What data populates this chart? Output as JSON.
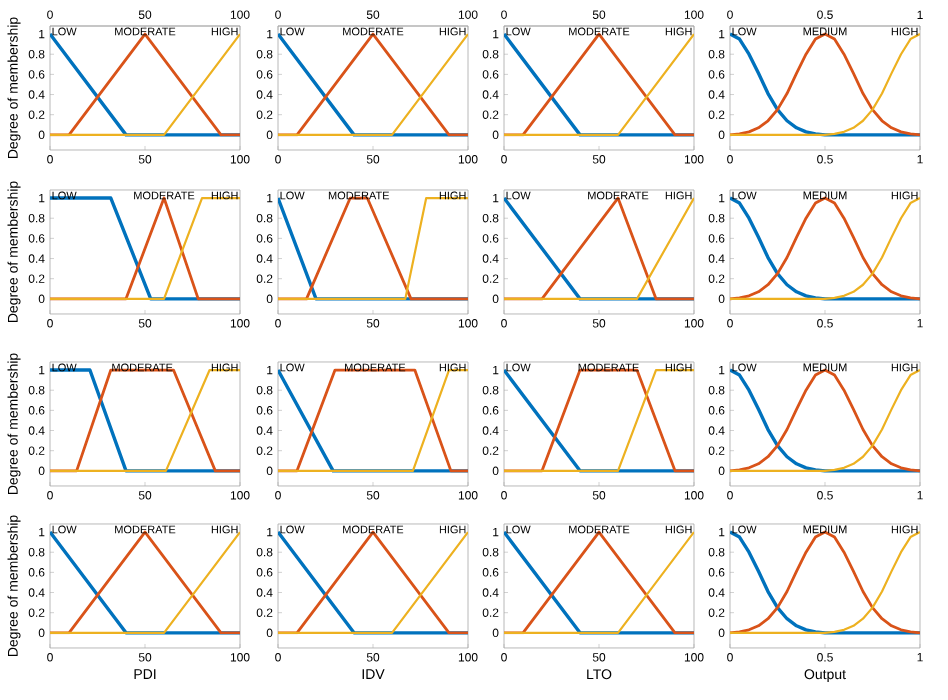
{
  "chart_data": [
    {
      "type": "line",
      "ylabel": "Degree of membership",
      "xlim": [
        0,
        100
      ],
      "ylim": [
        -0.15,
        1.08
      ],
      "xticks": [
        0,
        50,
        100
      ],
      "yticks": [
        0,
        0.2,
        0.4,
        0.6,
        0.8,
        1
      ],
      "x2lim": [
        0,
        100
      ],
      "x2ticks": [
        0,
        50,
        100
      ],
      "series": [
        {
          "name": "LOW",
          "color": "#0072bd",
          "x": [
            0,
            40,
            100
          ],
          "values": [
            1,
            0,
            0
          ]
        },
        {
          "name": "MODERATE",
          "color": "#d95319",
          "x": [
            0,
            10,
            50,
            90,
            100
          ],
          "values": [
            0,
            0,
            1,
            0,
            0
          ]
        },
        {
          "name": "HIGH",
          "color": "#edb120",
          "x": [
            0,
            60,
            100
          ],
          "values": [
            0,
            0,
            1
          ]
        }
      ]
    },
    {
      "type": "line",
      "xlim": [
        0,
        100
      ],
      "ylim": [
        -0.15,
        1.08
      ],
      "xticks": [
        0,
        50,
        100
      ],
      "yticks": [
        0,
        0.2,
        0.4,
        0.6,
        0.8,
        1
      ],
      "x2lim": [
        0,
        100
      ],
      "x2ticks": [
        0,
        50,
        100
      ],
      "series": [
        {
          "name": "LOW",
          "color": "#0072bd",
          "x": [
            0,
            40,
            100
          ],
          "values": [
            1,
            0,
            0
          ]
        },
        {
          "name": "MODERATE",
          "color": "#d95319",
          "x": [
            0,
            10,
            50,
            90,
            100
          ],
          "values": [
            0,
            0,
            1,
            0,
            0
          ]
        },
        {
          "name": "HIGH",
          "color": "#edb120",
          "x": [
            0,
            60,
            100
          ],
          "values": [
            0,
            0,
            1
          ]
        }
      ]
    },
    {
      "type": "line",
      "xlim": [
        0,
        100
      ],
      "ylim": [
        -0.15,
        1.08
      ],
      "xticks": [
        0,
        50,
        100
      ],
      "yticks": [
        0,
        0.2,
        0.4,
        0.6,
        0.8,
        1
      ],
      "x2lim": [
        0,
        100
      ],
      "x2ticks": [
        0,
        50,
        100
      ],
      "series": [
        {
          "name": "LOW",
          "color": "#0072bd",
          "x": [
            0,
            40,
            100
          ],
          "values": [
            1,
            0,
            0
          ]
        },
        {
          "name": "MODERATE",
          "color": "#d95319",
          "x": [
            0,
            10,
            50,
            90,
            100
          ],
          "values": [
            0,
            0,
            1,
            0,
            0
          ]
        },
        {
          "name": "HIGH",
          "color": "#edb120",
          "x": [
            0,
            60,
            100
          ],
          "values": [
            0,
            0,
            1
          ]
        }
      ]
    },
    {
      "type": "line",
      "x": [
        0,
        0.05,
        0.1,
        0.15,
        0.2,
        0.25,
        0.3,
        0.35,
        0.4,
        0.45,
        0.5,
        0.55,
        0.6,
        0.65,
        0.7,
        0.75,
        0.8,
        0.85,
        0.9,
        0.95,
        1
      ],
      "xlim": [
        0,
        1
      ],
      "ylim": [
        -0.15,
        1.08
      ],
      "xticks": [
        0,
        0.5,
        1
      ],
      "yticks": [
        0,
        0.2,
        0.4,
        0.6,
        0.8,
        1
      ],
      "x2lim": [
        0,
        1
      ],
      "x2ticks": [
        0,
        0.5,
        1
      ],
      "series": [
        {
          "name": "LOW",
          "color": "#0072bd",
          "values": [
            1,
            0.95,
            0.8,
            0.61,
            0.41,
            0.25,
            0.14,
            0.07,
            0.03,
            0.01,
            0,
            0,
            0,
            0,
            0,
            0,
            0,
            0,
            0,
            0,
            0
          ]
        },
        {
          "name": "MEDIUM",
          "color": "#d95319",
          "values": [
            0,
            0.01,
            0.03,
            0.07,
            0.14,
            0.25,
            0.41,
            0.61,
            0.8,
            0.95,
            1,
            0.95,
            0.8,
            0.61,
            0.41,
            0.25,
            0.14,
            0.07,
            0.03,
            0.01,
            0
          ]
        },
        {
          "name": "HIGH",
          "color": "#edb120",
          "values": [
            0,
            0,
            0,
            0,
            0,
            0,
            0,
            0,
            0,
            0,
            0,
            0.01,
            0.03,
            0.07,
            0.14,
            0.25,
            0.41,
            0.61,
            0.8,
            0.95,
            1
          ]
        }
      ]
    },
    {
      "type": "line",
      "ylabel": "Degree of membership",
      "xlim": [
        0,
        100
      ],
      "ylim": [
        -0.15,
        1.08
      ],
      "xticks": [
        0,
        50,
        100
      ],
      "yticks": [
        0,
        0.2,
        0.4,
        0.6,
        0.8,
        1
      ],
      "series": [
        {
          "name": "LOW",
          "color": "#0072bd",
          "x": [
            0,
            32,
            53,
            100
          ],
          "values": [
            1,
            1,
            0,
            0
          ]
        },
        {
          "name": "MODERATE",
          "color": "#d95319",
          "x": [
            0,
            40,
            60,
            78,
            100
          ],
          "values": [
            0,
            0,
            1,
            0,
            0
          ]
        },
        {
          "name": "HIGH",
          "color": "#edb120",
          "x": [
            0,
            60,
            80,
            100
          ],
          "values": [
            0,
            0,
            1,
            1
          ]
        }
      ]
    },
    {
      "type": "line",
      "xlim": [
        0,
        100
      ],
      "ylim": [
        -0.15,
        1.08
      ],
      "xticks": [
        0,
        50,
        100
      ],
      "yticks": [
        0,
        0.2,
        0.4,
        0.6,
        0.8,
        1
      ],
      "series": [
        {
          "name": "LOW",
          "color": "#0072bd",
          "x": [
            0,
            20,
            100
          ],
          "values": [
            1,
            0,
            0
          ]
        },
        {
          "name": "MODERATE",
          "color": "#d95319",
          "x": [
            0,
            15,
            38,
            47,
            70,
            100
          ],
          "values": [
            0,
            0,
            1,
            1,
            0,
            0
          ]
        },
        {
          "name": "HIGH",
          "color": "#edb120",
          "x": [
            0,
            67,
            78,
            100
          ],
          "values": [
            0,
            0,
            1,
            1
          ]
        }
      ]
    },
    {
      "type": "line",
      "xlim": [
        0,
        100
      ],
      "ylim": [
        -0.15,
        1.08
      ],
      "xticks": [
        0,
        50,
        100
      ],
      "yticks": [
        0,
        0.2,
        0.4,
        0.6,
        0.8,
        1
      ],
      "series": [
        {
          "name": "LOW",
          "color": "#0072bd",
          "x": [
            0,
            40,
            100
          ],
          "values": [
            1,
            0,
            0
          ]
        },
        {
          "name": "MODERATE",
          "color": "#d95319",
          "x": [
            0,
            20,
            60,
            80,
            100
          ],
          "values": [
            0,
            0,
            1,
            0,
            0
          ]
        },
        {
          "name": "HIGH",
          "color": "#edb120",
          "x": [
            0,
            70,
            100
          ],
          "values": [
            0,
            0,
            1
          ]
        }
      ]
    },
    {
      "type": "line",
      "x": [
        0,
        0.05,
        0.1,
        0.15,
        0.2,
        0.25,
        0.3,
        0.35,
        0.4,
        0.45,
        0.5,
        0.55,
        0.6,
        0.65,
        0.7,
        0.75,
        0.8,
        0.85,
        0.9,
        0.95,
        1
      ],
      "xlim": [
        0,
        1
      ],
      "ylim": [
        -0.15,
        1.08
      ],
      "xticks": [
        0,
        0.5,
        1
      ],
      "yticks": [
        0,
        0.2,
        0.4,
        0.6,
        0.8,
        1
      ],
      "series": [
        {
          "name": "LOW",
          "color": "#0072bd",
          "values": [
            1,
            0.95,
            0.8,
            0.61,
            0.41,
            0.25,
            0.14,
            0.07,
            0.03,
            0.01,
            0,
            0,
            0,
            0,
            0,
            0,
            0,
            0,
            0,
            0,
            0
          ]
        },
        {
          "name": "MEDIUM",
          "color": "#d95319",
          "values": [
            0,
            0.01,
            0.03,
            0.07,
            0.14,
            0.25,
            0.41,
            0.61,
            0.8,
            0.95,
            1,
            0.95,
            0.8,
            0.61,
            0.41,
            0.25,
            0.14,
            0.07,
            0.03,
            0.01,
            0
          ]
        },
        {
          "name": "HIGH",
          "color": "#edb120",
          "values": [
            0,
            0,
            0,
            0,
            0,
            0,
            0,
            0,
            0,
            0,
            0,
            0.01,
            0.03,
            0.07,
            0.14,
            0.25,
            0.41,
            0.61,
            0.8,
            0.95,
            1
          ]
        }
      ]
    },
    {
      "type": "line",
      "ylabel": "Degree of membership",
      "xlim": [
        0,
        100
      ],
      "ylim": [
        -0.15,
        1.08
      ],
      "xticks": [
        0,
        50,
        100
      ],
      "yticks": [
        0,
        0.2,
        0.4,
        0.6,
        0.8,
        1
      ],
      "series": [
        {
          "name": "LOW",
          "color": "#0072bd",
          "x": [
            0,
            21,
            40,
            100
          ],
          "values": [
            1,
            1,
            0,
            0
          ]
        },
        {
          "name": "MODERATE",
          "color": "#d95319",
          "x": [
            0,
            14,
            32,
            65,
            87,
            100
          ],
          "values": [
            0,
            0,
            1,
            1,
            0,
            0
          ]
        },
        {
          "name": "HIGH",
          "color": "#edb120",
          "x": [
            0,
            61,
            84,
            100
          ],
          "values": [
            0,
            0,
            1,
            1
          ]
        }
      ]
    },
    {
      "type": "line",
      "xlim": [
        0,
        100
      ],
      "ylim": [
        -0.15,
        1.08
      ],
      "xticks": [
        0,
        50,
        100
      ],
      "yticks": [
        0,
        0.2,
        0.4,
        0.6,
        0.8,
        1
      ],
      "series": [
        {
          "name": "LOW",
          "color": "#0072bd",
          "x": [
            0,
            29,
            100
          ],
          "values": [
            1,
            0,
            0
          ]
        },
        {
          "name": "MODERATE",
          "color": "#d95319",
          "x": [
            0,
            10,
            30,
            72,
            91,
            100
          ],
          "values": [
            0,
            0,
            1,
            1,
            0,
            0
          ]
        },
        {
          "name": "HIGH",
          "color": "#edb120",
          "x": [
            0,
            71,
            90,
            100
          ],
          "values": [
            0,
            0,
            1,
            1
          ]
        }
      ]
    },
    {
      "type": "line",
      "xlim": [
        0,
        100
      ],
      "ylim": [
        -0.15,
        1.08
      ],
      "xticks": [
        0,
        50,
        100
      ],
      "yticks": [
        0,
        0.2,
        0.4,
        0.6,
        0.8,
        1
      ],
      "series": [
        {
          "name": "LOW",
          "color": "#0072bd",
          "x": [
            0,
            40,
            100
          ],
          "values": [
            1,
            0,
            0
          ]
        },
        {
          "name": "MODERATE",
          "color": "#d95319",
          "x": [
            0,
            20,
            40,
            70,
            90,
            100
          ],
          "values": [
            0,
            0,
            1,
            1,
            0,
            0
          ]
        },
        {
          "name": "HIGH",
          "color": "#edb120",
          "x": [
            0,
            60,
            80,
            100
          ],
          "values": [
            0,
            0,
            1,
            1
          ]
        }
      ]
    },
    {
      "type": "line",
      "x": [
        0,
        0.05,
        0.1,
        0.15,
        0.2,
        0.25,
        0.3,
        0.35,
        0.4,
        0.45,
        0.5,
        0.55,
        0.6,
        0.65,
        0.7,
        0.75,
        0.8,
        0.85,
        0.9,
        0.95,
        1
      ],
      "xlim": [
        0,
        1
      ],
      "ylim": [
        -0.15,
        1.08
      ],
      "xticks": [
        0,
        0.5,
        1
      ],
      "yticks": [
        0,
        0.2,
        0.4,
        0.6,
        0.8,
        1
      ],
      "series": [
        {
          "name": "LOW",
          "color": "#0072bd",
          "values": [
            1,
            0.95,
            0.8,
            0.61,
            0.41,
            0.25,
            0.14,
            0.07,
            0.03,
            0.01,
            0,
            0,
            0,
            0,
            0,
            0,
            0,
            0,
            0,
            0,
            0
          ]
        },
        {
          "name": "MEDIUM",
          "color": "#d95319",
          "values": [
            0,
            0.01,
            0.03,
            0.07,
            0.14,
            0.25,
            0.41,
            0.61,
            0.8,
            0.95,
            1,
            0.95,
            0.8,
            0.61,
            0.41,
            0.25,
            0.14,
            0.07,
            0.03,
            0.01,
            0
          ]
        },
        {
          "name": "HIGH",
          "color": "#edb120",
          "values": [
            0,
            0,
            0,
            0,
            0,
            0,
            0,
            0,
            0,
            0,
            0,
            0.01,
            0.03,
            0.07,
            0.14,
            0.25,
            0.41,
            0.61,
            0.8,
            0.95,
            1
          ]
        }
      ]
    },
    {
      "type": "line",
      "ylabel": "Degree of membership",
      "xlabel": "PDI",
      "xlim": [
        0,
        100
      ],
      "ylim": [
        -0.15,
        1.08
      ],
      "xticks": [
        0,
        50,
        100
      ],
      "yticks": [
        0,
        0.2,
        0.4,
        0.6,
        0.8,
        1
      ],
      "series": [
        {
          "name": "LOW",
          "color": "#0072bd",
          "x": [
            0,
            40,
            100
          ],
          "values": [
            1,
            0,
            0
          ]
        },
        {
          "name": "MODERATE",
          "color": "#d95319",
          "x": [
            0,
            10,
            50,
            90,
            100
          ],
          "values": [
            0,
            0,
            1,
            0,
            0
          ]
        },
        {
          "name": "HIGH",
          "color": "#edb120",
          "x": [
            0,
            60,
            100
          ],
          "values": [
            0,
            0,
            1
          ]
        }
      ]
    },
    {
      "type": "line",
      "xlabel": "IDV",
      "xlim": [
        0,
        100
      ],
      "ylim": [
        -0.15,
        1.08
      ],
      "xticks": [
        0,
        50,
        100
      ],
      "yticks": [
        0,
        0.2,
        0.4,
        0.6,
        0.8,
        1
      ],
      "series": [
        {
          "name": "LOW",
          "color": "#0072bd",
          "x": [
            0,
            40,
            100
          ],
          "values": [
            1,
            0,
            0
          ]
        },
        {
          "name": "MODERATE",
          "color": "#d95319",
          "x": [
            0,
            10,
            50,
            90,
            100
          ],
          "values": [
            0,
            0,
            1,
            0,
            0
          ]
        },
        {
          "name": "HIGH",
          "color": "#edb120",
          "x": [
            0,
            60,
            100
          ],
          "values": [
            0,
            0,
            1
          ]
        }
      ]
    },
    {
      "type": "line",
      "xlabel": "LTO",
      "xlim": [
        0,
        100
      ],
      "ylim": [
        -0.15,
        1.08
      ],
      "xticks": [
        0,
        50,
        100
      ],
      "yticks": [
        0,
        0.2,
        0.4,
        0.6,
        0.8,
        1
      ],
      "series": [
        {
          "name": "LOW",
          "color": "#0072bd",
          "x": [
            0,
            40,
            100
          ],
          "values": [
            1,
            0,
            0
          ]
        },
        {
          "name": "MODERATE",
          "color": "#d95319",
          "x": [
            0,
            10,
            50,
            90,
            100
          ],
          "values": [
            0,
            0,
            1,
            0,
            0
          ]
        },
        {
          "name": "HIGH",
          "color": "#edb120",
          "x": [
            0,
            60,
            100
          ],
          "values": [
            0,
            0,
            1
          ]
        }
      ]
    },
    {
      "type": "line",
      "xlabel": "Output",
      "x": [
        0,
        0.05,
        0.1,
        0.15,
        0.2,
        0.25,
        0.3,
        0.35,
        0.4,
        0.45,
        0.5,
        0.55,
        0.6,
        0.65,
        0.7,
        0.75,
        0.8,
        0.85,
        0.9,
        0.95,
        1
      ],
      "xlim": [
        0,
        1
      ],
      "ylim": [
        -0.15,
        1.08
      ],
      "xticks": [
        0,
        0.5,
        1
      ],
      "yticks": [
        0,
        0.2,
        0.4,
        0.6,
        0.8,
        1
      ],
      "series": [
        {
          "name": "LOW",
          "color": "#0072bd",
          "values": [
            1,
            0.95,
            0.8,
            0.61,
            0.41,
            0.25,
            0.14,
            0.07,
            0.03,
            0.01,
            0,
            0,
            0,
            0,
            0,
            0,
            0,
            0,
            0,
            0,
            0
          ]
        },
        {
          "name": "MEDIUM",
          "color": "#d95319",
          "values": [
            0,
            0.01,
            0.03,
            0.07,
            0.14,
            0.25,
            0.41,
            0.61,
            0.8,
            0.95,
            1,
            0.95,
            0.8,
            0.61,
            0.41,
            0.25,
            0.14,
            0.07,
            0.03,
            0.01,
            0
          ]
        },
        {
          "name": "HIGH",
          "color": "#edb120",
          "values": [
            0,
            0,
            0,
            0,
            0,
            0,
            0,
            0,
            0,
            0,
            0,
            0.01,
            0.03,
            0.07,
            0.14,
            0.25,
            0.41,
            0.61,
            0.8,
            0.95,
            1
          ]
        }
      ]
    }
  ]
}
